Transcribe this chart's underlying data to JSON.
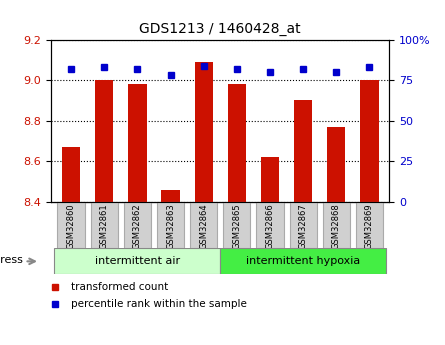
{
  "title": "GDS1213 / 1460428_at",
  "samples": [
    "GSM32860",
    "GSM32861",
    "GSM32862",
    "GSM32863",
    "GSM32864",
    "GSM32865",
    "GSM32866",
    "GSM32867",
    "GSM32868",
    "GSM32869"
  ],
  "bar_values": [
    8.67,
    9.0,
    8.98,
    8.46,
    9.09,
    8.98,
    8.62,
    8.9,
    8.77,
    9.0
  ],
  "percentile_values": [
    82,
    83,
    82,
    78,
    84,
    82,
    80,
    82,
    80,
    83
  ],
  "ylim_left": [
    8.4,
    9.2
  ],
  "ylim_right": [
    0,
    100
  ],
  "bar_color": "#cc1100",
  "dot_color": "#0000cc",
  "bar_width": 0.55,
  "group1_label": "intermittent air",
  "group2_label": "intermittent hypoxia",
  "group1_indices": [
    0,
    1,
    2,
    3,
    4
  ],
  "group2_indices": [
    5,
    6,
    7,
    8,
    9
  ],
  "group1_color": "#ccffcc",
  "group2_color": "#44ee44",
  "stress_label": "stress",
  "legend_bar_label": "transformed count",
  "legend_dot_label": "percentile rank within the sample",
  "tick_label_color_left": "#cc1100",
  "tick_label_color_right": "#0000cc",
  "yticks_left": [
    8.4,
    8.6,
    8.8,
    9.0,
    9.2
  ],
  "yticks_right": [
    0,
    25,
    50,
    75,
    100
  ],
  "ytick_labels_right": [
    "0",
    "25",
    "50",
    "75",
    "100%"
  ],
  "cell_color": "#d0d0d0",
  "cell_edge_color": "#aaaaaa"
}
